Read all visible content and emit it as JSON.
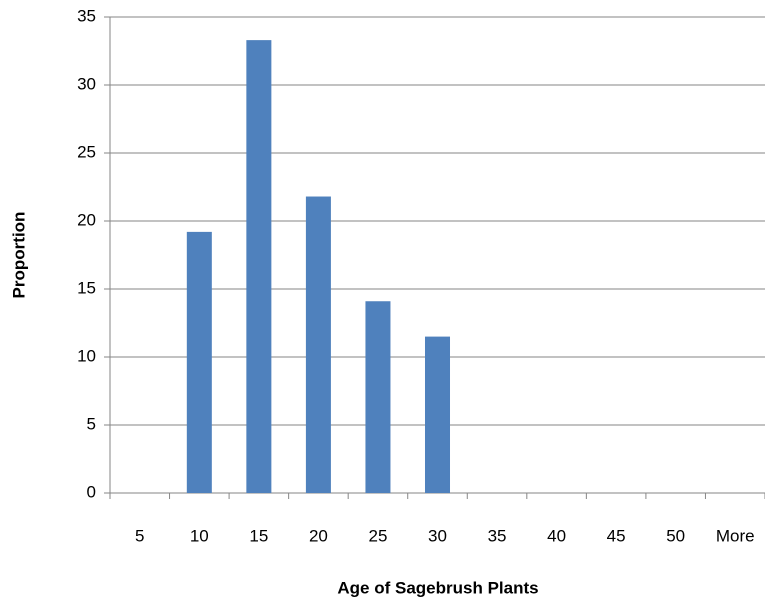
{
  "chart_data": {
    "type": "bar",
    "x_label": "Age of Sagebrush Plants",
    "y_label": "Proportion",
    "categories": [
      "5",
      "10",
      "15",
      "20",
      "25",
      "30",
      "35",
      "40",
      "45",
      "50",
      "More"
    ],
    "values": [
      0,
      19.2,
      33.3,
      21.8,
      14.1,
      11.5,
      0,
      0,
      0,
      0,
      0
    ],
    "color": "#4f81bd",
    "ylim": [
      0,
      35
    ],
    "yticks": [
      0,
      5,
      10,
      15,
      20,
      25,
      30,
      35
    ],
    "grid": true
  }
}
